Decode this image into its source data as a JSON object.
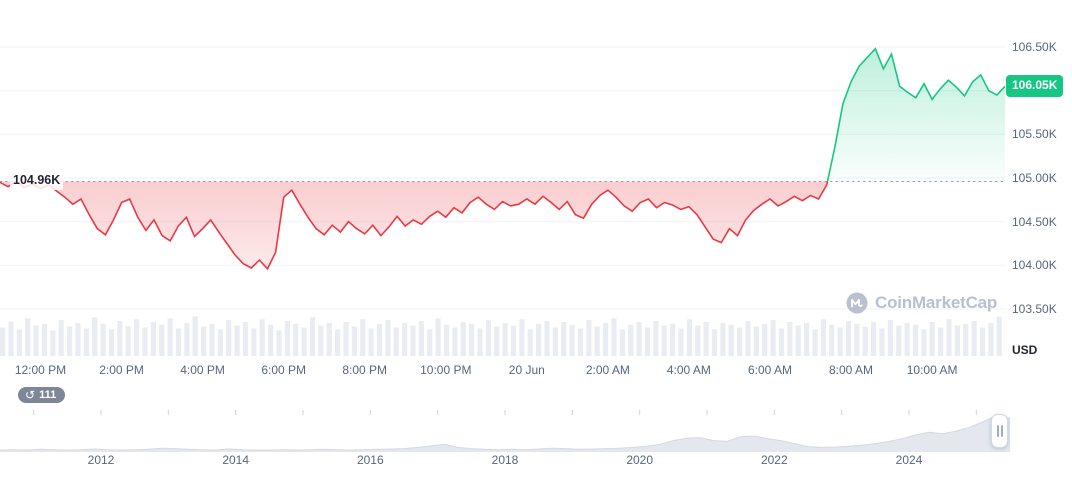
{
  "chart_data": [
    {
      "name": "price-chart-24h",
      "type": "line",
      "title": "",
      "baseline_label": "104.96K",
      "baseline_value": 104.96,
      "current_price_label": "106.05K",
      "current_price_value": 106.05,
      "y_axis": {
        "unit": "USD",
        "tick_labels": [
          "106.50K",
          "106.00K",
          "105.50K",
          "105.00K",
          "104.50K",
          "104.00K",
          "103.50K"
        ],
        "tick_values": [
          106.5,
          106.0,
          105.5,
          105.0,
          104.5,
          104.0,
          103.5
        ]
      },
      "x_axis": {
        "tick_labels": [
          "12:00 PM",
          "2:00 PM",
          "4:00 PM",
          "6:00 PM",
          "8:00 PM",
          "10:00 PM",
          "20 Jun",
          "2:00 AM",
          "4:00 AM",
          "6:00 AM",
          "8:00 AM",
          "10:00 AM"
        ]
      },
      "series": [
        {
          "name": "price-usd-k",
          "values": [
            104.95,
            104.9,
            104.96,
            104.89,
            104.93,
            104.88,
            104.92,
            104.85,
            104.78,
            104.7,
            104.76,
            104.58,
            104.42,
            104.35,
            104.52,
            104.72,
            104.76,
            104.55,
            104.4,
            104.52,
            104.34,
            104.28,
            104.45,
            104.55,
            104.33,
            104.42,
            104.52,
            104.38,
            104.25,
            104.12,
            104.02,
            103.97,
            104.06,
            103.96,
            104.15,
            104.78,
            104.86,
            104.7,
            104.55,
            104.42,
            104.35,
            104.46,
            104.38,
            104.5,
            104.42,
            104.36,
            104.46,
            104.34,
            104.44,
            104.56,
            104.45,
            104.52,
            104.47,
            104.56,
            104.62,
            104.55,
            104.66,
            104.6,
            104.72,
            104.78,
            104.7,
            104.64,
            104.73,
            104.68,
            104.7,
            104.76,
            104.7,
            104.79,
            104.72,
            104.64,
            104.73,
            104.58,
            104.54,
            104.7,
            104.8,
            104.86,
            104.78,
            104.68,
            104.62,
            104.72,
            104.76,
            104.66,
            104.72,
            104.69,
            104.64,
            104.67,
            104.58,
            104.44,
            104.3,
            104.26,
            104.42,
            104.34,
            104.52,
            104.63,
            104.7,
            104.76,
            104.68,
            104.73,
            104.79,
            104.74,
            104.8,
            104.76,
            104.92,
            105.35,
            105.85,
            106.1,
            106.28,
            106.38,
            106.48,
            106.25,
            106.42,
            106.05,
            105.98,
            105.92,
            106.08,
            105.9,
            106.02,
            106.12,
            106.04,
            105.94,
            106.1,
            106.18,
            106.0,
            105.95,
            106.05
          ]
        }
      ],
      "volume_relative": [
        0.62,
        0.75,
        0.58,
        0.82,
        0.66,
        0.7,
        0.55,
        0.78,
        0.64,
        0.72,
        0.6,
        0.84,
        0.7,
        0.58,
        0.76,
        0.65,
        0.8,
        0.62,
        0.74,
        0.68,
        0.82,
        0.6,
        0.72,
        0.86,
        0.64,
        0.7,
        0.58,
        0.78,
        0.66,
        0.74,
        0.6,
        0.8,
        0.68,
        0.56,
        0.76,
        0.7,
        0.62,
        0.84,
        0.66,
        0.72,
        0.58,
        0.74,
        0.64,
        0.8,
        0.6,
        0.7,
        0.78,
        0.62,
        0.72,
        0.66,
        0.76,
        0.58,
        0.82,
        0.68,
        0.62,
        0.74,
        0.7,
        0.6,
        0.78,
        0.64,
        0.72,
        0.66,
        0.8,
        0.58,
        0.7,
        0.76,
        0.62,
        0.74,
        0.68,
        0.6,
        0.78,
        0.64,
        0.72,
        0.82,
        0.58,
        0.68,
        0.74,
        0.62,
        0.76,
        0.66,
        0.7,
        0.6,
        0.8,
        0.66,
        0.74,
        0.58,
        0.72,
        0.68,
        0.62,
        0.76,
        0.64,
        0.7,
        0.78,
        0.6,
        0.74,
        0.66,
        0.72,
        0.58,
        0.8,
        0.68,
        0.62,
        0.76,
        0.7,
        0.64,
        0.74,
        0.6,
        0.78,
        0.66,
        0.72,
        0.68,
        0.58,
        0.74,
        0.62,
        0.8,
        0.66,
        0.7,
        0.76,
        0.62,
        0.72,
        0.85
      ],
      "colors": {
        "up": "#16c784",
        "down": "#ea3943",
        "grid": "#eff2f5",
        "axis_text": "#58667e",
        "baseline": "#8f98ab"
      }
    },
    {
      "name": "all-time-timeline",
      "type": "area",
      "x_tick_labels": [
        "2012",
        "2014",
        "2016",
        "2018",
        "2020",
        "2022",
        "2024"
      ],
      "x_tick_years": [
        2012,
        2014,
        2016,
        2018,
        2020,
        2022,
        2024
      ],
      "values": [
        0.05,
        0.06,
        0.05,
        0.07,
        0.06,
        0.05,
        0.06,
        0.08,
        0.06,
        0.05,
        0.06,
        0.07,
        0.1,
        0.09,
        0.07,
        0.06,
        0.05,
        0.08,
        0.06,
        0.05,
        0.05,
        0.06,
        0.05,
        0.06,
        0.07,
        0.06,
        0.05,
        0.06,
        0.07,
        0.08,
        0.09,
        0.12,
        0.16,
        0.2,
        0.12,
        0.09,
        0.07,
        0.06,
        0.07,
        0.06,
        0.08,
        0.1,
        0.09,
        0.07,
        0.08,
        0.09,
        0.1,
        0.12,
        0.15,
        0.2,
        0.3,
        0.36,
        0.38,
        0.3,
        0.28,
        0.4,
        0.42,
        0.35,
        0.3,
        0.22,
        0.14,
        0.12,
        0.13,
        0.15,
        0.18,
        0.22,
        0.28,
        0.35,
        0.45,
        0.52,
        0.48,
        0.55,
        0.65,
        0.8,
        0.95,
        0.88
      ]
    }
  ],
  "history_badge": {
    "count": "111"
  },
  "watermark": {
    "text": "CoinMarketCap"
  }
}
